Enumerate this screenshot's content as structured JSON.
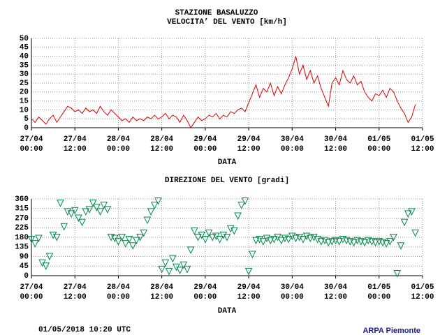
{
  "title": "STAZIONE BASALUZZO",
  "footer": {
    "timestamp": "01/05/2018 10:20 UTC",
    "source": "ARPA Piemonte"
  },
  "chart_data": [
    {
      "type": "line",
      "title": "VELOCITA’ DEL VENTO [km/h]",
      "x_label": "DATA",
      "color": "#e00000",
      "grid": true,
      "x": [
        0,
        1,
        2,
        3,
        4,
        5,
        6,
        7,
        8,
        9,
        10,
        11,
        12,
        13,
        14,
        15,
        16,
        17,
        18,
        19,
        20,
        21,
        22,
        23,
        24,
        25,
        26,
        27,
        28,
        29,
        30,
        31,
        32,
        33,
        34,
        35,
        36,
        37,
        38,
        39,
        40,
        41,
        42,
        43,
        44,
        45,
        46,
        47,
        48,
        49,
        50,
        51,
        52,
        53,
        54,
        55,
        56,
        57,
        58,
        59,
        60,
        61,
        62,
        63,
        64,
        65,
        66,
        67,
        68,
        69,
        70,
        71,
        72,
        73,
        74,
        75,
        76,
        77,
        78,
        79,
        80,
        81,
        82,
        83,
        84,
        85,
        86,
        87,
        88,
        89,
        90,
        91,
        92,
        93,
        94,
        95,
        96,
        97,
        98,
        99,
        100,
        101,
        102,
        103,
        104,
        105,
        106
      ],
      "values": [
        5,
        3,
        6,
        4,
        2,
        5,
        7,
        3,
        6,
        9,
        12,
        11,
        9,
        10,
        8,
        11,
        9,
        10,
        8,
        12,
        9,
        7,
        10,
        8,
        6,
        4,
        5,
        3,
        6,
        4,
        5,
        4,
        6,
        5,
        7,
        5,
        6,
        8,
        5,
        7,
        6,
        3,
        7,
        4,
        0,
        3,
        6,
        4,
        5,
        7,
        6,
        8,
        5,
        7,
        6,
        9,
        8,
        10,
        11,
        9,
        14,
        19,
        24,
        17,
        22,
        20,
        25,
        18,
        23,
        19,
        24,
        28,
        33,
        40,
        30,
        35,
        27,
        32,
        25,
        29,
        22,
        17,
        12,
        25,
        28,
        24,
        32,
        27,
        25,
        29,
        24,
        26,
        20,
        17,
        15,
        19,
        18,
        21,
        17,
        22,
        20,
        15,
        11,
        8,
        3,
        6,
        13
      ],
      "xlim": [
        0,
        108
      ],
      "xticks": [
        {
          "value": 0,
          "label": "27/04 00:00"
        },
        {
          "value": 12,
          "label": "27/04 12:00"
        },
        {
          "value": 24,
          "label": "28/04 00:00"
        },
        {
          "value": 36,
          "label": "28/04 12:00"
        },
        {
          "value": 48,
          "label": "29/04 00:00"
        },
        {
          "value": 60,
          "label": "29/04 12:00"
        },
        {
          "value": 72,
          "label": "30/04 00:00"
        },
        {
          "value": 84,
          "label": "30/04 12:00"
        },
        {
          "value": 96,
          "label": "01/05 00:00"
        },
        {
          "value": 108,
          "label": "01/05 12:00"
        }
      ],
      "ylim": [
        0,
        50
      ],
      "yticks": [
        0,
        5,
        10,
        15,
        20,
        25,
        30,
        35,
        40,
        45,
        50
      ]
    },
    {
      "type": "scatter",
      "title": "DIREZIONE DEL VENTO [gradi]",
      "x_label": "DATA",
      "color": "#00884a",
      "grid": true,
      "x": [
        0,
        1,
        2,
        3,
        4,
        5,
        6,
        7,
        8,
        9,
        10,
        11,
        12,
        13,
        14,
        15,
        16,
        17,
        18,
        19,
        20,
        21,
        22,
        23,
        24,
        25,
        26,
        27,
        28,
        29,
        30,
        31,
        32,
        33,
        34,
        35,
        36,
        37,
        38,
        39,
        40,
        41,
        42,
        43,
        44,
        45,
        46,
        47,
        48,
        49,
        50,
        51,
        52,
        53,
        54,
        55,
        56,
        57,
        58,
        59,
        60,
        61,
        62,
        63,
        64,
        65,
        66,
        67,
        68,
        69,
        70,
        71,
        72,
        73,
        74,
        75,
        76,
        77,
        78,
        79,
        80,
        81,
        82,
        83,
        84,
        85,
        86,
        87,
        88,
        89,
        90,
        91,
        92,
        93,
        94,
        95,
        96,
        97,
        98,
        99,
        100,
        101,
        102,
        103,
        104,
        105,
        106
      ],
      "values": [
        170,
        150,
        175,
        60,
        45,
        90,
        190,
        180,
        340,
        230,
        300,
        290,
        305,
        270,
        250,
        300,
        310,
        340,
        320,
        300,
        330,
        310,
        180,
        175,
        160,
        180,
        150,
        170,
        140,
        165,
        180,
        200,
        260,
        300,
        330,
        350,
        30,
        60,
        20,
        80,
        40,
        25,
        50,
        30,
        120,
        210,
        180,
        190,
        170,
        200,
        180,
        185,
        170,
        190,
        180,
        220,
        210,
        280,
        330,
        350,
        20,
        100,
        165,
        170,
        160,
        175,
        165,
        170,
        180,
        165,
        175,
        170,
        185,
        175,
        180,
        170,
        185,
        175,
        180,
        170,
        160,
        165,
        155,
        160,
        165,
        160,
        170,
        165,
        160,
        155,
        165,
        160,
        155,
        165,
        160,
        155,
        160,
        155,
        150,
        160,
        180,
        10,
        140,
        250,
        290,
        300,
        200
      ],
      "xlim": [
        0,
        108
      ],
      "xticks": [
        {
          "value": 0,
          "label": "27/04 00:00"
        },
        {
          "value": 12,
          "label": "27/04 12:00"
        },
        {
          "value": 24,
          "label": "28/04 00:00"
        },
        {
          "value": 36,
          "label": "28/04 12:00"
        },
        {
          "value": 48,
          "label": "29/04 00:00"
        },
        {
          "value": 60,
          "label": "29/04 12:00"
        },
        {
          "value": 72,
          "label": "30/04 00:00"
        },
        {
          "value": 84,
          "label": "30/04 12:00"
        },
        {
          "value": 96,
          "label": "01/05 00:00"
        },
        {
          "value": 108,
          "label": "01/05 12:00"
        }
      ],
      "ylim": [
        0,
        360
      ],
      "yticks": [
        0,
        45,
        90,
        135,
        180,
        225,
        270,
        315,
        360
      ]
    }
  ]
}
